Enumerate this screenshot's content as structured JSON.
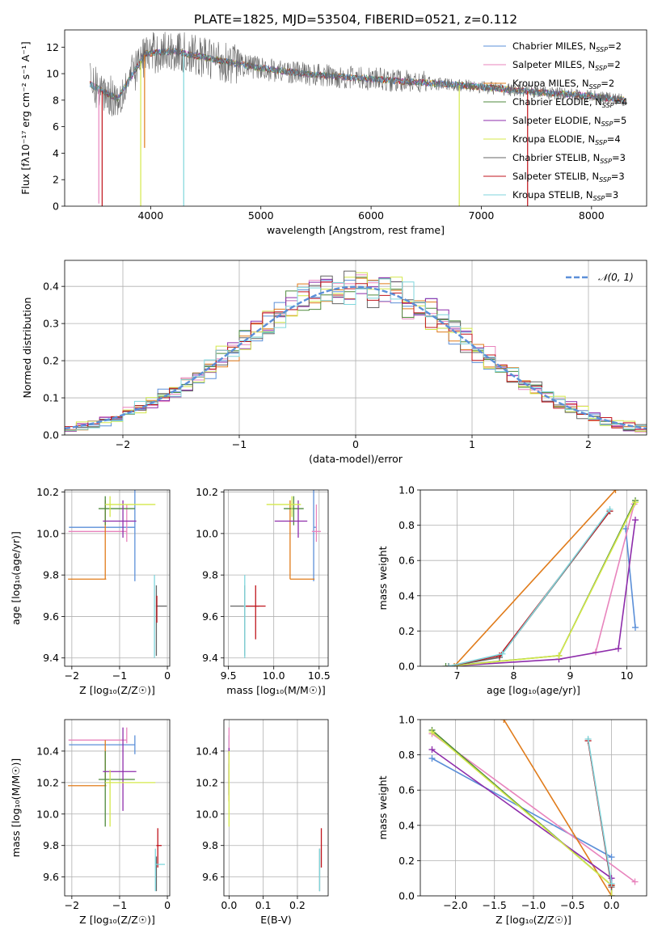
{
  "figure": {
    "title": "PLATE=1825, MJD=53504, FIBERID=0521, z=0.112"
  },
  "colors": {
    "Chabrier MILES": "#5b8fd8",
    "Salpeter MILES": "#e884bd",
    "Kroupa MILES": "#e07b1a",
    "Chabrier ELODIE": "#4f8a3c",
    "Salpeter ELODIE": "#8e2dab",
    "Kroupa ELODIE": "#d4e84a",
    "Chabrier STELIB": "#666666",
    "Salpeter STELIB": "#c0141c",
    "Kroupa STELIB": "#7fd6dc",
    "gauss": "#5b8fd8"
  },
  "chart_data": [
    {
      "id": "spectrum",
      "type": "line",
      "xlabel": "wavelength [Angstrom, rest frame]",
      "ylabel": "Flux [fλ10⁻¹⁷ erg cm⁻² s⁻¹ A⁻¹]",
      "xlim": [
        3220,
        8500
      ],
      "ylim": [
        0,
        13.3
      ],
      "xticks": [
        4000,
        5000,
        6000,
        7000,
        8000
      ],
      "yticks": [
        0,
        2,
        4,
        6,
        8,
        10,
        12
      ],
      "legend": "top-right",
      "series": [
        {
          "name": "Chabrier MILES, N_SSP=2",
          "key": "Chabrier MILES"
        },
        {
          "name": "Salpeter MILES, N_SSP=2",
          "key": "Salpeter MILES"
        },
        {
          "name": "Kroupa MILES, N_SSP=2",
          "key": "Kroupa MILES"
        },
        {
          "name": "Chabrier ELODIE, N_SSP=4",
          "key": "Chabrier ELODIE"
        },
        {
          "name": "Salpeter ELODIE, N_SSP=5",
          "key": "Salpeter ELODIE"
        },
        {
          "name": "Kroupa ELODIE, N_SSP=4",
          "key": "Kroupa ELODIE"
        },
        {
          "name": "Chabrier STELIB, N_SSP=3",
          "key": "Chabrier STELIB"
        },
        {
          "name": "Salpeter STELIB, N_SSP=3",
          "key": "Salpeter STELIB"
        },
        {
          "name": "Kroupa STELIB, N_SSP=3",
          "key": "Kroupa STELIB"
        }
      ],
      "continuum": [
        [
          3450,
          9.2
        ],
        [
          3700,
          8.1
        ],
        [
          3950,
          11.5
        ],
        [
          4200,
          11.7
        ],
        [
          4500,
          11.2
        ],
        [
          5000,
          10.4
        ],
        [
          5500,
          9.9
        ],
        [
          6000,
          9.6
        ],
        [
          6500,
          9.3
        ],
        [
          7000,
          9.0
        ],
        [
          7500,
          8.6
        ],
        [
          8000,
          8.3
        ],
        [
          8300,
          8.0
        ]
      ],
      "dips": [
        {
          "key": "Salpeter MILES",
          "x": 3530,
          "y": 0.2
        },
        {
          "key": "Salpeter STELIB",
          "x": 3560,
          "y": 0.0
        },
        {
          "key": "Kroupa ELODIE",
          "x": 3910,
          "y": 0.0
        },
        {
          "key": "Kroupa MILES",
          "x": 3945,
          "y": 4.4
        },
        {
          "key": "Kroupa STELIB",
          "x": 4300,
          "y": 0.0
        },
        {
          "key": "Kroupa ELODIE",
          "x": 6800,
          "y": 0.0
        },
        {
          "key": "Salpeter STELIB",
          "x": 7420,
          "y": 0.0
        }
      ]
    },
    {
      "id": "histogram",
      "type": "bar",
      "xlabel": "(data-model)/error",
      "ylabel": "Normed distribution",
      "xlim": [
        -2.5,
        2.5
      ],
      "ylim": [
        0,
        0.47
      ],
      "xticks": [
        -2,
        -1,
        0,
        1,
        2
      ],
      "yticks": [
        0.0,
        0.1,
        0.2,
        0.3,
        0.4
      ],
      "grid": true,
      "legend": "top-right",
      "bin_width": 0.1,
      "reference_curve": {
        "name": "𝒩(0, 1)",
        "mean": 0,
        "sigma": 1
      },
      "series_keys": [
        "Chabrier MILES",
        "Salpeter MILES",
        "Kroupa MILES",
        "Chabrier ELODIE",
        "Salpeter ELODIE",
        "Kroupa ELODIE",
        "Chabrier STELIB",
        "Salpeter STELIB",
        "Kroupa STELIB"
      ]
    },
    {
      "id": "age-vs-Z",
      "type": "scatter",
      "xlabel": "Z [log₁₀(Z/Z☉)]",
      "ylabel": "age  [log₁₀(age/yr)]",
      "xlim": [
        -2.15,
        0.05
      ],
      "ylim": [
        9.36,
        10.21
      ],
      "xticks": [
        -2,
        -1,
        0
      ],
      "yticks": [
        9.4,
        9.6,
        9.8,
        10.0,
        10.2
      ],
      "grid": true,
      "points": [
        {
          "key": "Chabrier MILES",
          "x": -0.68,
          "xerr": [
            1.38,
            0.0
          ],
          "y": 10.03,
          "yerr": [
            0.26,
            0.18
          ]
        },
        {
          "key": "Salpeter MILES",
          "x": -0.85,
          "xerr": [
            1.22,
            0.0
          ],
          "y": 10.01,
          "yerr": [
            0.05,
            0.13
          ]
        },
        {
          "key": "Kroupa MILES",
          "x": -1.3,
          "xerr": [
            0.78,
            0.02
          ],
          "y": 9.78,
          "yerr": [
            0.0,
            0.38
          ]
        },
        {
          "key": "Chabrier ELODIE",
          "x": -1.3,
          "xerr": [
            0.14,
            0.62
          ],
          "y": 10.12,
          "yerr": [
            0.08,
            0.06
          ]
        },
        {
          "key": "Salpeter ELODIE",
          "x": -0.93,
          "xerr": [
            0.42,
            0.28
          ],
          "y": 10.06,
          "yerr": [
            0.08,
            0.1
          ]
        },
        {
          "key": "Kroupa ELODIE",
          "x": -1.2,
          "xerr": [
            0.1,
            0.95
          ],
          "y": 10.14,
          "yerr": [
            0.06,
            0.04
          ]
        },
        {
          "key": "Chabrier STELIB",
          "x": -0.23,
          "xerr": [
            0.01,
            0.22
          ],
          "y": 9.65,
          "yerr": [
            0.24,
            0.1
          ]
        },
        {
          "key": "Salpeter STELIB",
          "x": -0.22,
          "xerr": [
            0.01,
            0.01
          ],
          "y": 9.65,
          "yerr": [
            0.08,
            0.05
          ]
        },
        {
          "key": "Kroupa STELIB",
          "x": -0.27,
          "xerr": [
            0.01,
            0.01
          ],
          "y": 9.65,
          "yerr": [
            0.25,
            0.15
          ]
        }
      ]
    },
    {
      "id": "age-vs-mass",
      "type": "scatter",
      "xlabel": "mass [log₁₀(M/M☉)]",
      "ylabel": "",
      "xlim": [
        9.45,
        10.6
      ],
      "ylim": [
        9.36,
        10.21
      ],
      "xticks": [
        9.5,
        10.0,
        10.5
      ],
      "yticks": [
        9.4,
        9.6,
        9.8,
        10.0,
        10.2
      ],
      "grid": true,
      "points": [
        {
          "key": "Chabrier MILES",
          "x": 10.44,
          "xerr": [
            0.0,
            0.03
          ],
          "y": 10.03,
          "yerr": [
            0.26,
            0.18
          ]
        },
        {
          "key": "Salpeter MILES",
          "x": 10.47,
          "xerr": [
            0.05,
            0.05
          ],
          "y": 10.01,
          "yerr": [
            0.05,
            0.13
          ]
        },
        {
          "key": "Kroupa MILES",
          "x": 10.18,
          "xerr": [
            0.0,
            0.27
          ],
          "y": 9.78,
          "yerr": [
            0.0,
            0.38
          ]
        },
        {
          "key": "Chabrier ELODIE",
          "x": 10.22,
          "xerr": [
            0.11,
            0.11
          ],
          "y": 10.12,
          "yerr": [
            0.08,
            0.06
          ]
        },
        {
          "key": "Salpeter ELODIE",
          "x": 10.27,
          "xerr": [
            0.26,
            0.1
          ],
          "y": 10.06,
          "yerr": [
            0.08,
            0.1
          ]
        },
        {
          "key": "Kroupa ELODIE",
          "x": 10.2,
          "xerr": [
            0.28,
            0.1
          ],
          "y": 10.14,
          "yerr": [
            0.06,
            0.04
          ]
        },
        {
          "key": "Chabrier STELIB",
          "x": 9.68,
          "xerr": [
            0.16,
            0.16
          ],
          "y": 9.65,
          "yerr": [
            0.24,
            0.1
          ]
        },
        {
          "key": "Salpeter STELIB",
          "x": 9.8,
          "xerr": [
            0.11,
            0.11
          ],
          "y": 9.65,
          "yerr": [
            0.16,
            0.1
          ]
        },
        {
          "key": "Kroupa STELIB",
          "x": 9.68,
          "xerr": [
            0.01,
            0.01
          ],
          "y": 9.65,
          "yerr": [
            0.25,
            0.15
          ]
        }
      ]
    },
    {
      "id": "weight-vs-age",
      "type": "line",
      "xlabel": "age  [log₁₀(age/yr)]",
      "ylabel": "mass weight",
      "xlim": [
        6.35,
        10.35
      ],
      "ylim": [
        0,
        1
      ],
      "xticks": [
        7,
        8,
        9,
        10
      ],
      "yticks": [
        0.0,
        0.2,
        0.4,
        0.6,
        0.8,
        1.0
      ],
      "grid": true,
      "series": [
        {
          "key": "Chabrier MILES",
          "x": [
            9.98,
            10.15
          ],
          "y": [
            0.78,
            0.22
          ]
        },
        {
          "key": "Salpeter MILES",
          "x": [
            9.45,
            10.13
          ],
          "y": [
            0.08,
            0.92
          ]
        },
        {
          "key": "Kroupa MILES",
          "x": [
            6.95,
            9.8
          ],
          "y": [
            0.0,
            1.0
          ]
        },
        {
          "key": "Chabrier ELODIE",
          "x": [
            6.8,
            8.8,
            10.15
          ],
          "y": [
            0.0,
            0.06,
            0.94
          ]
        },
        {
          "key": "Salpeter ELODIE",
          "x": [
            6.85,
            8.8,
            9.85,
            10.15
          ],
          "y": [
            0.0,
            0.04,
            0.1,
            0.83
          ]
        },
        {
          "key": "Kroupa ELODIE",
          "x": [
            6.85,
            8.8,
            10.15
          ],
          "y": [
            0.0,
            0.06,
            0.93
          ]
        },
        {
          "key": "Chabrier STELIB",
          "x": [
            6.85,
            7.75,
            9.7
          ],
          "y": [
            0.0,
            0.05,
            0.88
          ]
        },
        {
          "key": "Salpeter STELIB",
          "x": [
            6.85,
            7.75,
            9.7
          ],
          "y": [
            0.0,
            0.06,
            0.88
          ]
        },
        {
          "key": "Kroupa STELIB",
          "x": [
            6.85,
            7.8,
            9.7
          ],
          "y": [
            0.0,
            0.07,
            0.89
          ]
        }
      ]
    },
    {
      "id": "mass-vs-Z",
      "type": "scatter",
      "xlabel": "Z [log₁₀(Z/Z☉)]",
      "ylabel": "mass [log₁₀(M/M☉)]",
      "xlim": [
        -2.15,
        0.05
      ],
      "ylim": [
        9.48,
        10.6
      ],
      "xticks": [
        -2,
        -1,
        0
      ],
      "yticks": [
        9.6,
        9.8,
        10.0,
        10.2,
        10.4
      ],
      "grid": true,
      "points": [
        {
          "key": "Chabrier MILES",
          "x": -0.68,
          "xerr": [
            1.38,
            0.0
          ],
          "y": 10.44,
          "yerr": [
            0.06,
            0.06
          ]
        },
        {
          "key": "Salpeter MILES",
          "x": -0.85,
          "xerr": [
            1.22,
            0.0
          ],
          "y": 10.47,
          "yerr": [
            0.02,
            0.08
          ]
        },
        {
          "key": "Kroupa MILES",
          "x": -1.3,
          "xerr": [
            0.78,
            0.02
          ],
          "y": 10.18,
          "yerr": [
            0.0,
            0.29
          ]
        },
        {
          "key": "Chabrier ELODIE",
          "x": -1.3,
          "xerr": [
            0.14,
            0.62
          ],
          "y": 10.22,
          "yerr": [
            0.3,
            0.18
          ]
        },
        {
          "key": "Salpeter ELODIE",
          "x": -0.93,
          "xerr": [
            0.42,
            0.28
          ],
          "y": 10.27,
          "yerr": [
            0.25,
            0.28
          ]
        },
        {
          "key": "Kroupa ELODIE",
          "x": -1.2,
          "xerr": [
            0.1,
            0.95
          ],
          "y": 10.2,
          "yerr": [
            0.28,
            0.08
          ]
        },
        {
          "key": "Chabrier STELIB",
          "x": -0.23,
          "xerr": [
            0.01,
            0.01
          ],
          "y": 9.68,
          "yerr": [
            0.17,
            0.05
          ]
        },
        {
          "key": "Salpeter STELIB",
          "x": -0.2,
          "xerr": [
            0.03,
            0.08
          ],
          "y": 9.8,
          "yerr": [
            0.14,
            0.11
          ]
        },
        {
          "key": "Kroupa STELIB",
          "x": -0.25,
          "xerr": [
            0.01,
            0.2
          ],
          "y": 9.68,
          "yerr": [
            0.17,
            0.1
          ]
        }
      ]
    },
    {
      "id": "mass-vs-EBV",
      "type": "scatter",
      "xlabel": "E(B-V)",
      "ylabel": "",
      "xlim": [
        -0.015,
        0.29
      ],
      "ylim": [
        9.48,
        10.6
      ],
      "xticks": [
        0.0,
        0.1,
        0.2
      ],
      "yticks": [
        9.6,
        9.8,
        10.0,
        10.2,
        10.4
      ],
      "grid": true,
      "points": [
        {
          "key": "Chabrier MILES",
          "x": 0.0,
          "xerr": [
            0,
            0
          ],
          "y": 10.44,
          "yerr": [
            0.06,
            0.06
          ]
        },
        {
          "key": "Salpeter MILES",
          "x": 0.0,
          "xerr": [
            0,
            0
          ],
          "y": 10.47,
          "yerr": [
            0.08,
            0.08
          ]
        },
        {
          "key": "Kroupa MILES",
          "x": 0.0,
          "xerr": [
            0,
            0
          ],
          "y": 10.18,
          "yerr": [
            0.1,
            0.1
          ]
        },
        {
          "key": "Chabrier ELODIE",
          "x": 0.0,
          "xerr": [
            0,
            0
          ],
          "y": 10.22,
          "yerr": [
            0.1,
            0.1
          ]
        },
        {
          "key": "Salpeter ELODIE",
          "x": 0.0,
          "xerr": [
            0,
            0
          ],
          "y": 10.27,
          "yerr": [
            0.15,
            0.15
          ]
        },
        {
          "key": "Kroupa ELODIE",
          "x": 0.0,
          "xerr": [
            0,
            0
          ],
          "y": 10.2,
          "yerr": [
            0.28,
            0.2
          ]
        },
        {
          "key": "Chabrier STELIB",
          "x": 0.265,
          "xerr": [
            0,
            0
          ],
          "y": 9.68,
          "yerr": [
            0.17,
            0.1
          ]
        },
        {
          "key": "Salpeter STELIB",
          "x": 0.27,
          "xerr": [
            0,
            0
          ],
          "y": 9.8,
          "yerr": [
            0.14,
            0.11
          ]
        },
        {
          "key": "Kroupa STELIB",
          "x": 0.265,
          "xerr": [
            0,
            0
          ],
          "y": 9.68,
          "yerr": [
            0.17,
            0.1
          ]
        }
      ]
    },
    {
      "id": "weight-vs-Z",
      "type": "line",
      "xlabel": "Z [log₁₀(Z/Z☉)]",
      "ylabel": "mass weight",
      "xlim": [
        -2.45,
        0.45
      ],
      "ylim": [
        0,
        1
      ],
      "xticks": [
        -2.0,
        -1.5,
        -1.0,
        -0.5,
        0.0
      ],
      "yticks": [
        0.0,
        0.2,
        0.4,
        0.6,
        0.8,
        1.0
      ],
      "grid": true,
      "series": [
        {
          "key": "Chabrier MILES",
          "x": [
            -2.3,
            0.0
          ],
          "y": [
            0.78,
            0.22
          ]
        },
        {
          "key": "Salpeter MILES",
          "x": [
            -2.3,
            0.3
          ],
          "y": [
            0.92,
            0.08
          ]
        },
        {
          "key": "Kroupa MILES",
          "x": [
            -1.38,
            0.0
          ],
          "y": [
            1.0,
            0.0
          ]
        },
        {
          "key": "Chabrier ELODIE",
          "x": [
            -2.3,
            0.0,
            0.0
          ],
          "y": [
            0.94,
            0.06,
            0.0
          ]
        },
        {
          "key": "Salpeter ELODIE",
          "x": [
            -2.3,
            0.0,
            0.0
          ],
          "y": [
            0.83,
            0.1,
            0.0
          ]
        },
        {
          "key": "Kroupa ELODIE",
          "x": [
            -2.3,
            0.0,
            0.0
          ],
          "y": [
            0.93,
            0.06,
            0.0
          ]
        },
        {
          "key": "Chabrier STELIB",
          "x": [
            -0.3,
            0.0
          ],
          "y": [
            0.88,
            0.05
          ]
        },
        {
          "key": "Salpeter STELIB",
          "x": [
            -0.3,
            0.0
          ],
          "y": [
            0.88,
            0.06
          ]
        },
        {
          "key": "Kroupa STELIB",
          "x": [
            -0.3,
            0.0
          ],
          "y": [
            0.89,
            0.07
          ]
        }
      ]
    }
  ]
}
